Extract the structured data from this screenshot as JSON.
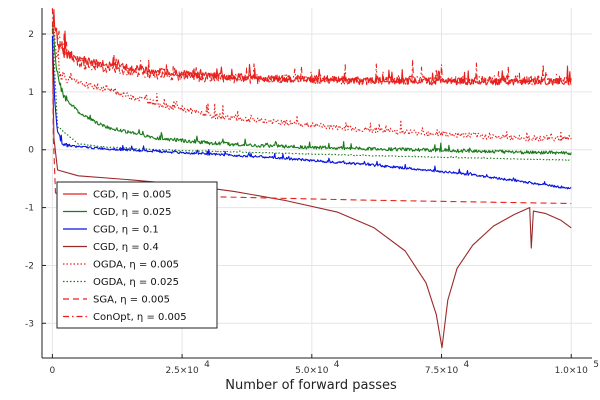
{
  "chart_data": {
    "type": "line",
    "title": "",
    "xlabel": "Number of forward passes",
    "ylabel": "",
    "xlim": [
      -2000,
      104000
    ],
    "ylim": [
      -3.6,
      2.45
    ],
    "grid": true,
    "legend_position": "bottom-left",
    "x_ticks": [
      {
        "value": 0,
        "label": "0"
      },
      {
        "value": 25000,
        "label": "2.5×10",
        "exp": "4"
      },
      {
        "value": 50000,
        "label": "5.0×10",
        "exp": "4"
      },
      {
        "value": 75000,
        "label": "7.5×10",
        "exp": "4"
      },
      {
        "value": 100000,
        "label": "1.0×10",
        "exp": "5"
      }
    ],
    "y_ticks": [
      {
        "value": 2,
        "label": "2"
      },
      {
        "value": 1,
        "label": "1"
      },
      {
        "value": 0,
        "label": "0"
      },
      {
        "value": -1,
        "label": "-1"
      },
      {
        "value": -2,
        "label": "-2"
      },
      {
        "value": -3,
        "label": "-3"
      }
    ],
    "series": [
      {
        "name": "CGD,  η = 0.005",
        "color": "#e8201c",
        "dash": "solid",
        "noise": 0.12,
        "points": [
          [
            0,
            2.25
          ],
          [
            1500,
            1.75
          ],
          [
            4000,
            1.6
          ],
          [
            10000,
            1.48
          ],
          [
            20000,
            1.35
          ],
          [
            30000,
            1.28
          ],
          [
            40000,
            1.24
          ],
          [
            50000,
            1.21
          ],
          [
            60000,
            1.2
          ],
          [
            70000,
            1.19
          ],
          [
            80000,
            1.18
          ],
          [
            90000,
            1.18
          ],
          [
            100000,
            1.18
          ]
        ]
      },
      {
        "name": "CGD,  η = 0.025",
        "color": "#1a7a1a",
        "dash": "solid",
        "noise": 0.06,
        "points": [
          [
            0,
            2.2
          ],
          [
            800,
            1.4
          ],
          [
            2000,
            0.95
          ],
          [
            5000,
            0.65
          ],
          [
            10000,
            0.4
          ],
          [
            20000,
            0.2
          ],
          [
            30000,
            0.12
          ],
          [
            40000,
            0.07
          ],
          [
            50000,
            0.04
          ],
          [
            60000,
            0.02
          ],
          [
            70000,
            0.0
          ],
          [
            80000,
            -0.02
          ],
          [
            90000,
            -0.04
          ],
          [
            100000,
            -0.06
          ]
        ]
      },
      {
        "name": "CGD,  η = 0.1",
        "color": "#0a14e0",
        "dash": "solid",
        "noise": 0.04,
        "points": [
          [
            0,
            2.0
          ],
          [
            400,
            0.9
          ],
          [
            1000,
            0.3
          ],
          [
            2000,
            0.1
          ],
          [
            5000,
            0.05
          ],
          [
            10000,
            0.02
          ],
          [
            20000,
            -0.03
          ],
          [
            40000,
            -0.12
          ],
          [
            60000,
            -0.25
          ],
          [
            80000,
            -0.42
          ],
          [
            100000,
            -0.67
          ]
        ]
      },
      {
        "name": "CGD,  η = 0.4",
        "color": "#9a2a2a",
        "dash": "solid",
        "noise": 0,
        "points": [
          [
            0,
            1.9
          ],
          [
            300,
            0.2
          ],
          [
            1000,
            -0.35
          ],
          [
            5000,
            -0.45
          ],
          [
            15000,
            -0.52
          ],
          [
            25000,
            -0.6
          ],
          [
            35000,
            -0.72
          ],
          [
            45000,
            -0.88
          ],
          [
            55000,
            -1.08
          ],
          [
            62000,
            -1.35
          ],
          [
            68000,
            -1.75
          ],
          [
            72000,
            -2.3
          ],
          [
            74000,
            -2.85
          ],
          [
            75100,
            -3.42
          ],
          [
            76200,
            -2.6
          ],
          [
            78000,
            -2.05
          ],
          [
            81000,
            -1.65
          ],
          [
            85000,
            -1.32
          ],
          [
            89000,
            -1.12
          ],
          [
            92000,
            -1.0
          ],
          [
            92300,
            -1.7
          ],
          [
            92700,
            -1.06
          ],
          [
            95000,
            -1.1
          ],
          [
            98000,
            -1.22
          ],
          [
            100000,
            -1.35
          ]
        ]
      },
      {
        "name": "OGDA,  η = 0.005",
        "color": "#e8201c",
        "dash": "dotted",
        "noise": 0.1,
        "points": [
          [
            0,
            2.2
          ],
          [
            1500,
            1.3
          ],
          [
            5000,
            1.15
          ],
          [
            10000,
            1.05
          ],
          [
            20000,
            0.8
          ],
          [
            30000,
            0.6
          ],
          [
            40000,
            0.5
          ],
          [
            50000,
            0.42
          ],
          [
            60000,
            0.35
          ],
          [
            70000,
            0.3
          ],
          [
            80000,
            0.25
          ],
          [
            90000,
            0.2
          ],
          [
            100000,
            0.2
          ]
        ]
      },
      {
        "name": "OGDA,  η = 0.025",
        "color": "#1a7a1a",
        "dash": "dotted",
        "noise": 0.01,
        "points": [
          [
            0,
            2.15
          ],
          [
            1000,
            0.4
          ],
          [
            5000,
            0.1
          ],
          [
            10000,
            0.05
          ],
          [
            20000,
            0.0
          ],
          [
            40000,
            -0.05
          ],
          [
            60000,
            -0.1
          ],
          [
            80000,
            -0.14
          ],
          [
            100000,
            -0.18
          ]
        ]
      },
      {
        "name": "SGA,  η = 0.005",
        "color": "#e8201c",
        "dash": "dashed",
        "noise": 0,
        "points": [
          [
            0,
            2.1
          ],
          [
            200,
            0.2
          ],
          [
            600,
            -0.75
          ],
          [
            3000,
            -0.76
          ],
          [
            10000,
            -0.77
          ],
          [
            20000,
            -0.79
          ],
          [
            40000,
            -0.83
          ],
          [
            60000,
            -0.87
          ],
          [
            80000,
            -0.9
          ],
          [
            100000,
            -0.93
          ]
        ]
      },
      {
        "name": "ConOpt,  η = 0.005",
        "color": "#e8201c",
        "dash": "dashdot",
        "noise": 0.16,
        "points": [
          [
            0,
            2.3
          ],
          [
            1500,
            1.85
          ],
          [
            5000,
            1.5
          ],
          [
            10000,
            1.4
          ],
          [
            20000,
            1.3
          ],
          [
            30000,
            1.25
          ],
          [
            40000,
            1.22
          ],
          [
            60000,
            1.2
          ],
          [
            80000,
            1.2
          ],
          [
            100000,
            1.2
          ]
        ]
      }
    ]
  }
}
